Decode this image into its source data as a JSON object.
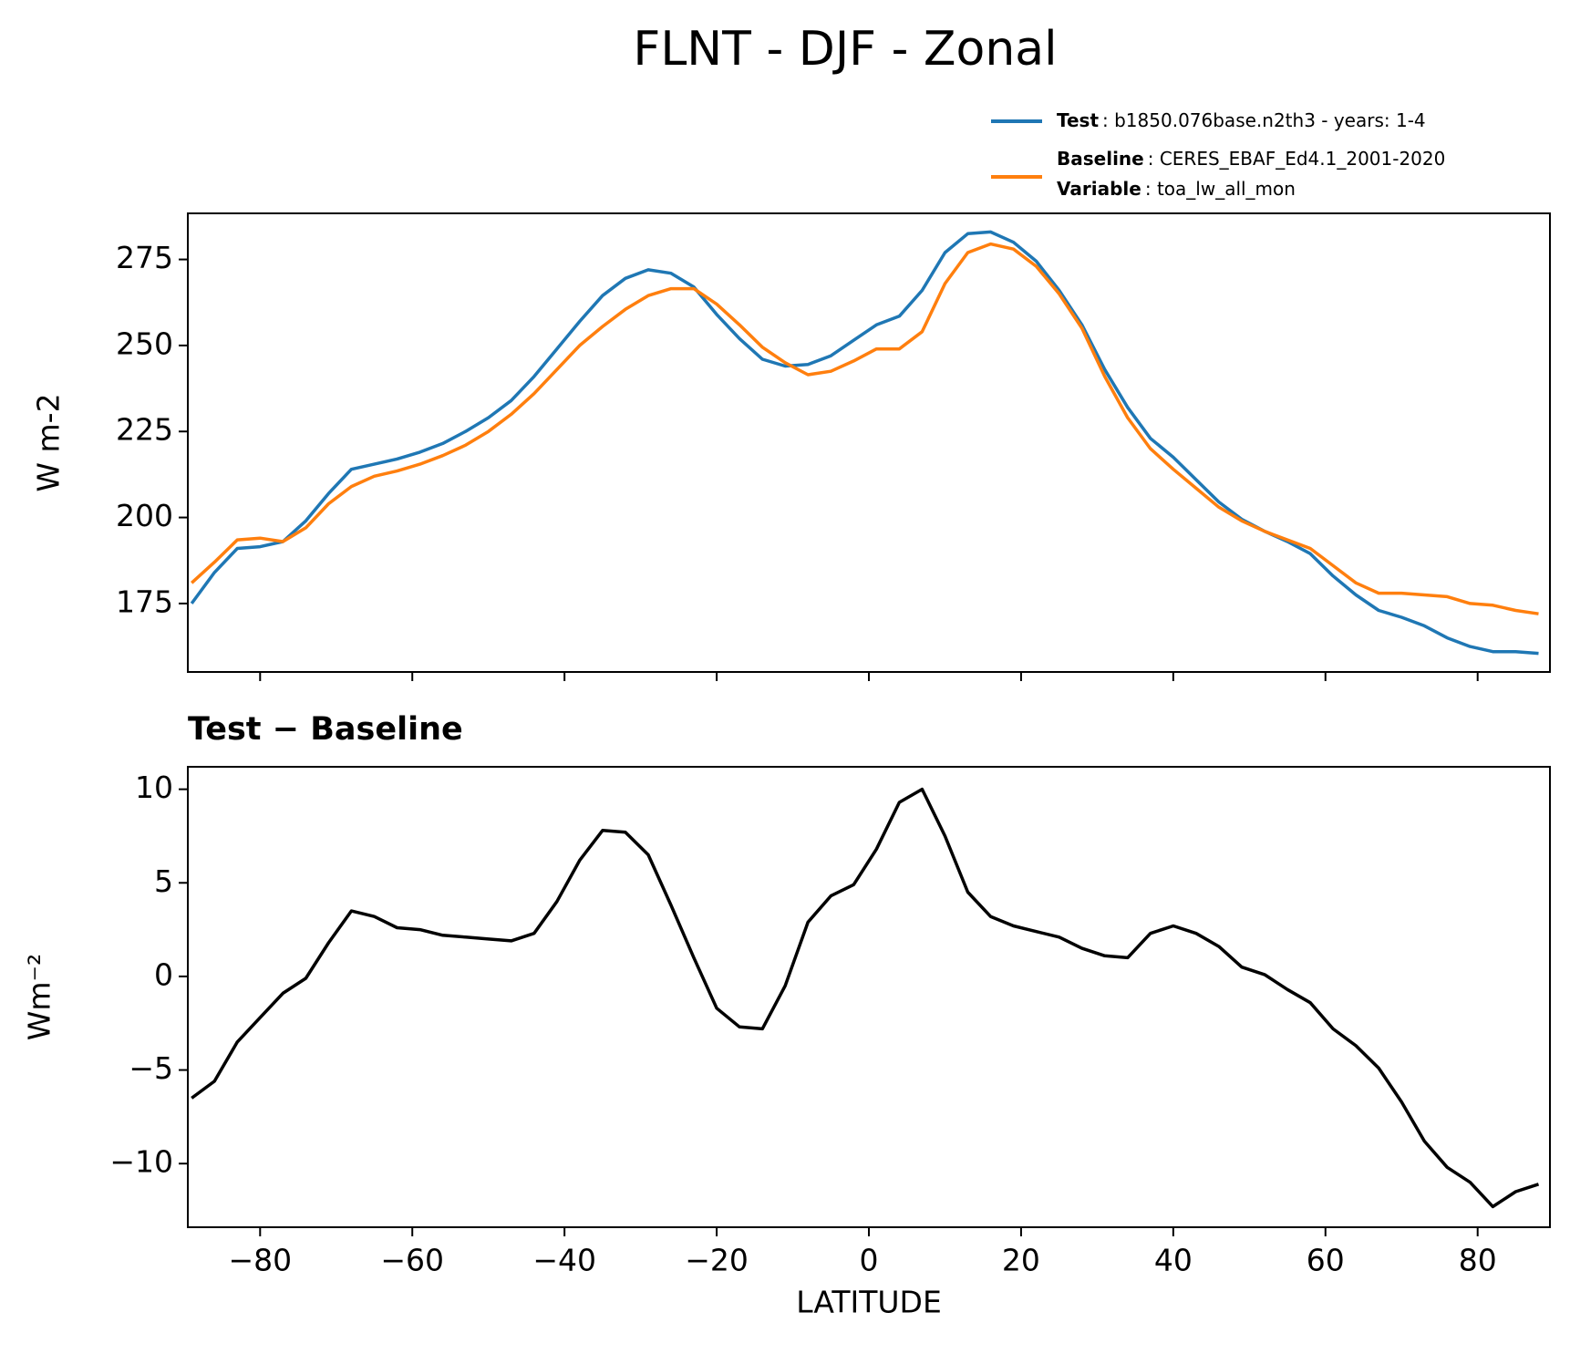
{
  "title": "FLNT - DJF - Zonal",
  "chart_data": [
    {
      "type": "line",
      "ylabel": "W m-2",
      "legend": "upper right",
      "x": [
        -89,
        -86,
        -83,
        -80,
        -77,
        -74,
        -71,
        -68,
        -65,
        -62,
        -59,
        -56,
        -53,
        -50,
        -47,
        -44,
        -41,
        -38,
        -35,
        -32,
        -29,
        -26,
        -23,
        -20,
        -17,
        -14,
        -11,
        -8,
        -5,
        -2,
        1,
        4,
        7,
        10,
        13,
        16,
        19,
        22,
        25,
        28,
        31,
        34,
        37,
        40,
        43,
        46,
        49,
        52,
        55,
        58,
        61,
        64,
        67,
        70,
        73,
        76,
        79,
        82,
        85,
        88
      ],
      "series": [
        {
          "name": "Test",
          "label": ": b1850.076base.n2th3 - years: 1-4",
          "color": "#1f77b4",
          "values": [
            175,
            184,
            191,
            191.5,
            193,
            199,
            207,
            214,
            215.5,
            217,
            219,
            221.5,
            225,
            229,
            234,
            241,
            249,
            257,
            264.5,
            269.5,
            272,
            271,
            267,
            259,
            252,
            246,
            244,
            244.5,
            247,
            251.5,
            256,
            258.5,
            266,
            277,
            282.5,
            283,
            280,
            274.5,
            266,
            256,
            243,
            232,
            223,
            217.5,
            211,
            204.5,
            199.5,
            196,
            193,
            189.5,
            183,
            177.5,
            173,
            171,
            168.5,
            165,
            162.5,
            161,
            161,
            160.5
          ]
        },
        {
          "name": "Baseline",
          "label": ": CERES_EBAF_Ed4.1_2001-2020",
          "color": "#ff7f0e",
          "values": [
            181,
            187,
            193.5,
            194,
            193,
            197,
            204,
            209,
            212,
            213.5,
            215.5,
            218,
            221,
            225,
            230,
            236,
            243,
            250,
            255.5,
            260.5,
            264.5,
            266.5,
            266.5,
            262,
            256,
            249.5,
            245,
            241.5,
            242.5,
            245.5,
            249,
            249,
            254,
            268,
            277,
            279.5,
            278,
            273,
            265,
            255,
            241,
            229,
            220,
            214,
            208.5,
            203,
            199,
            196,
            193.5,
            191,
            186,
            181,
            178,
            178,
            177.5,
            177,
            175,
            174.5,
            173,
            172
          ]
        }
      ],
      "legend_note": {
        "name": "Variable",
        "label": ": toa_lw_all_mon"
      },
      "xlim": [
        -89.5,
        89.5
      ],
      "xticks": [
        -80,
        -60,
        -40,
        -20,
        0,
        20,
        40,
        60,
        80
      ],
      "ylim": [
        155.1,
        288.4
      ],
      "yticks": [
        175,
        200,
        225,
        250,
        275
      ]
    },
    {
      "type": "line",
      "title": "Test − Baseline",
      "xlabel": "LATITUDE",
      "ylabel": "Wm⁻²",
      "color": "#000000",
      "x": [
        -89,
        -86,
        -83,
        -80,
        -77,
        -74,
        -71,
        -68,
        -65,
        -62,
        -59,
        -56,
        -53,
        -50,
        -47,
        -44,
        -41,
        -38,
        -35,
        -32,
        -29,
        -26,
        -23,
        -20,
        -17,
        -14,
        -11,
        -8,
        -5,
        -2,
        1,
        4,
        7,
        10,
        13,
        16,
        19,
        22,
        25,
        28,
        31,
        34,
        37,
        40,
        43,
        46,
        49,
        52,
        55,
        58,
        61,
        64,
        67,
        70,
        73,
        76,
        79,
        82,
        85,
        88
      ],
      "values": [
        -6.5,
        -5.6,
        -3.5,
        -2.2,
        -0.9,
        -0.1,
        1.8,
        3.5,
        3.2,
        2.6,
        2.5,
        2.2,
        2.1,
        2.0,
        1.9,
        2.3,
        4.0,
        6.2,
        7.8,
        7.7,
        6.5,
        3.8,
        1.0,
        -1.7,
        -2.7,
        -2.8,
        -0.5,
        2.9,
        4.3,
        4.9,
        6.8,
        9.3,
        10.0,
        7.5,
        4.5,
        3.2,
        2.7,
        2.4,
        2.1,
        1.5,
        1.1,
        1.0,
        2.3,
        2.7,
        2.3,
        1.6,
        0.5,
        0.1,
        -0.7,
        -1.4,
        -2.8,
        -3.7,
        -4.9,
        -6.7,
        -8.8,
        -10.2,
        -11.0,
        -12.3,
        -11.5,
        -11.1
      ],
      "xlim": [
        -89.5,
        89.5
      ],
      "xticks": [
        {
          "value": -80,
          "label": "−80"
        },
        {
          "value": -60,
          "label": "−60"
        },
        {
          "value": -40,
          "label": "−40"
        },
        {
          "value": -20,
          "label": "−20"
        },
        0,
        20,
        40,
        60,
        80
      ],
      "ylim": [
        -13.4,
        11.2
      ],
      "yticks": [
        {
          "value": -10,
          "label": "−10"
        },
        {
          "value": -5,
          "label": "−5"
        },
        0,
        5,
        10
      ]
    }
  ]
}
